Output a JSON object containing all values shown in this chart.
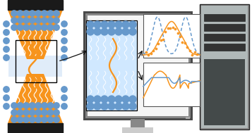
{
  "bg_color": "#ffffff",
  "orange": "#f7941d",
  "blue_head": "#6699cc",
  "blue_light": "#cce0f5",
  "blue_tail": "#aaccee",
  "black_bar": "#1a1a1a",
  "monitor_outer": "#4a4a4a",
  "monitor_inner": "#888888",
  "monitor_screen": "#f5f5f5",
  "monitor_stand_top": "#aaaaaa",
  "monitor_stand_mid": "#888888",
  "monitor_stand_bot": "#cccccc",
  "tower_outer": "#888888",
  "tower_bg": "#b0b8b8",
  "tower_slot": "#333333",
  "tower_dark_panel": "#444a4a",
  "graph_border": "#555555",
  "arrow_color": "#111111",
  "bilayer_bg": "#d0e8ff"
}
